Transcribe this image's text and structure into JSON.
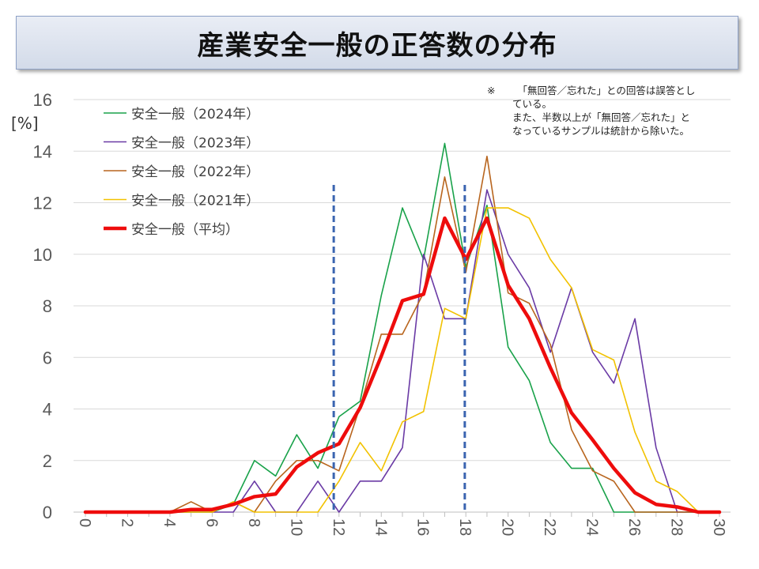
{
  "title": "産業安全一般の正答数の分布",
  "note": {
    "mark": "※",
    "line1": "「無回答／忘れた」との回答は誤答とし",
    "line2": "ている。",
    "line3": "また、半数以上が「無回答／忘れた」と",
    "line4": "なっているサンプルは統計から除いた。"
  },
  "chart_data": {
    "type": "line",
    "title": "産業安全一般の正答数の分布",
    "xlabel": "",
    "ylabel": "[%]",
    "xlim": [
      0,
      30
    ],
    "ylim": [
      0,
      16
    ],
    "x_ticks": [
      0,
      2,
      4,
      6,
      8,
      10,
      12,
      14,
      16,
      18,
      20,
      22,
      24,
      26,
      28,
      30
    ],
    "y_ticks": [
      0,
      2,
      4,
      6,
      8,
      10,
      12,
      14,
      16
    ],
    "grid": true,
    "legend_position": "top-left",
    "x": [
      0,
      1,
      2,
      3,
      4,
      5,
      6,
      7,
      8,
      9,
      10,
      11,
      12,
      13,
      14,
      15,
      16,
      17,
      18,
      19,
      20,
      21,
      22,
      23,
      24,
      25,
      26,
      27,
      28,
      29,
      30
    ],
    "series": [
      {
        "name": "安全一般（2024年）",
        "color": "#19a24a",
        "width": 1.6,
        "values": [
          0,
          0,
          0,
          0,
          0,
          0,
          0,
          0.3,
          2.0,
          1.4,
          3.0,
          1.7,
          3.7,
          4.3,
          8.4,
          11.8,
          9.8,
          14.3,
          9.5,
          11.9,
          6.4,
          5.1,
          2.7,
          1.7,
          1.7,
          0,
          0,
          0,
          0,
          0,
          0
        ]
      },
      {
        "name": "安全一般（2023年）",
        "color": "#6a3aa5",
        "width": 1.6,
        "values": [
          0,
          0,
          0,
          0,
          0,
          0,
          0,
          0,
          1.2,
          0,
          0,
          1.2,
          0,
          1.2,
          1.2,
          2.5,
          10.0,
          7.5,
          7.5,
          12.5,
          10.0,
          8.7,
          6.2,
          8.7,
          6.2,
          5.0,
          7.5,
          2.5,
          0,
          0,
          0
        ]
      },
      {
        "name": "安全一般（2022年）",
        "color": "#b8651e",
        "width": 1.6,
        "values": [
          0,
          0,
          0,
          0,
          0,
          0.4,
          0,
          0.4,
          0,
          1.2,
          2.0,
          2.0,
          1.6,
          4.1,
          6.9,
          6.9,
          8.5,
          13.0,
          9.3,
          13.8,
          8.5,
          8.1,
          6.5,
          3.2,
          1.6,
          1.2,
          0,
          0,
          0,
          0,
          0
        ]
      },
      {
        "name": "安全一般（2021年）",
        "color": "#f2c200",
        "width": 1.6,
        "values": [
          0,
          0,
          0,
          0,
          0,
          0,
          0,
          0.4,
          0,
          0,
          0,
          0,
          1.2,
          2.7,
          1.6,
          3.5,
          3.9,
          7.9,
          7.5,
          11.8,
          11.8,
          11.4,
          9.8,
          8.7,
          6.3,
          5.9,
          3.1,
          1.2,
          0.8,
          0,
          0
        ]
      },
      {
        "name": "安全一般（平均）",
        "color": "#ee0c0c",
        "width": 4.5,
        "values": [
          0,
          0,
          0,
          0,
          0,
          0.1,
          0.1,
          0.3,
          0.6,
          0.7,
          1.75,
          2.3,
          2.65,
          4.05,
          6.05,
          8.2,
          8.45,
          11.4,
          9.8,
          11.4,
          8.8,
          7.5,
          5.6,
          3.85,
          2.8,
          1.7,
          0.75,
          0.3,
          0.2,
          0,
          0
        ]
      }
    ],
    "reference_lines_x": [
      11.75,
      17.95
    ]
  }
}
